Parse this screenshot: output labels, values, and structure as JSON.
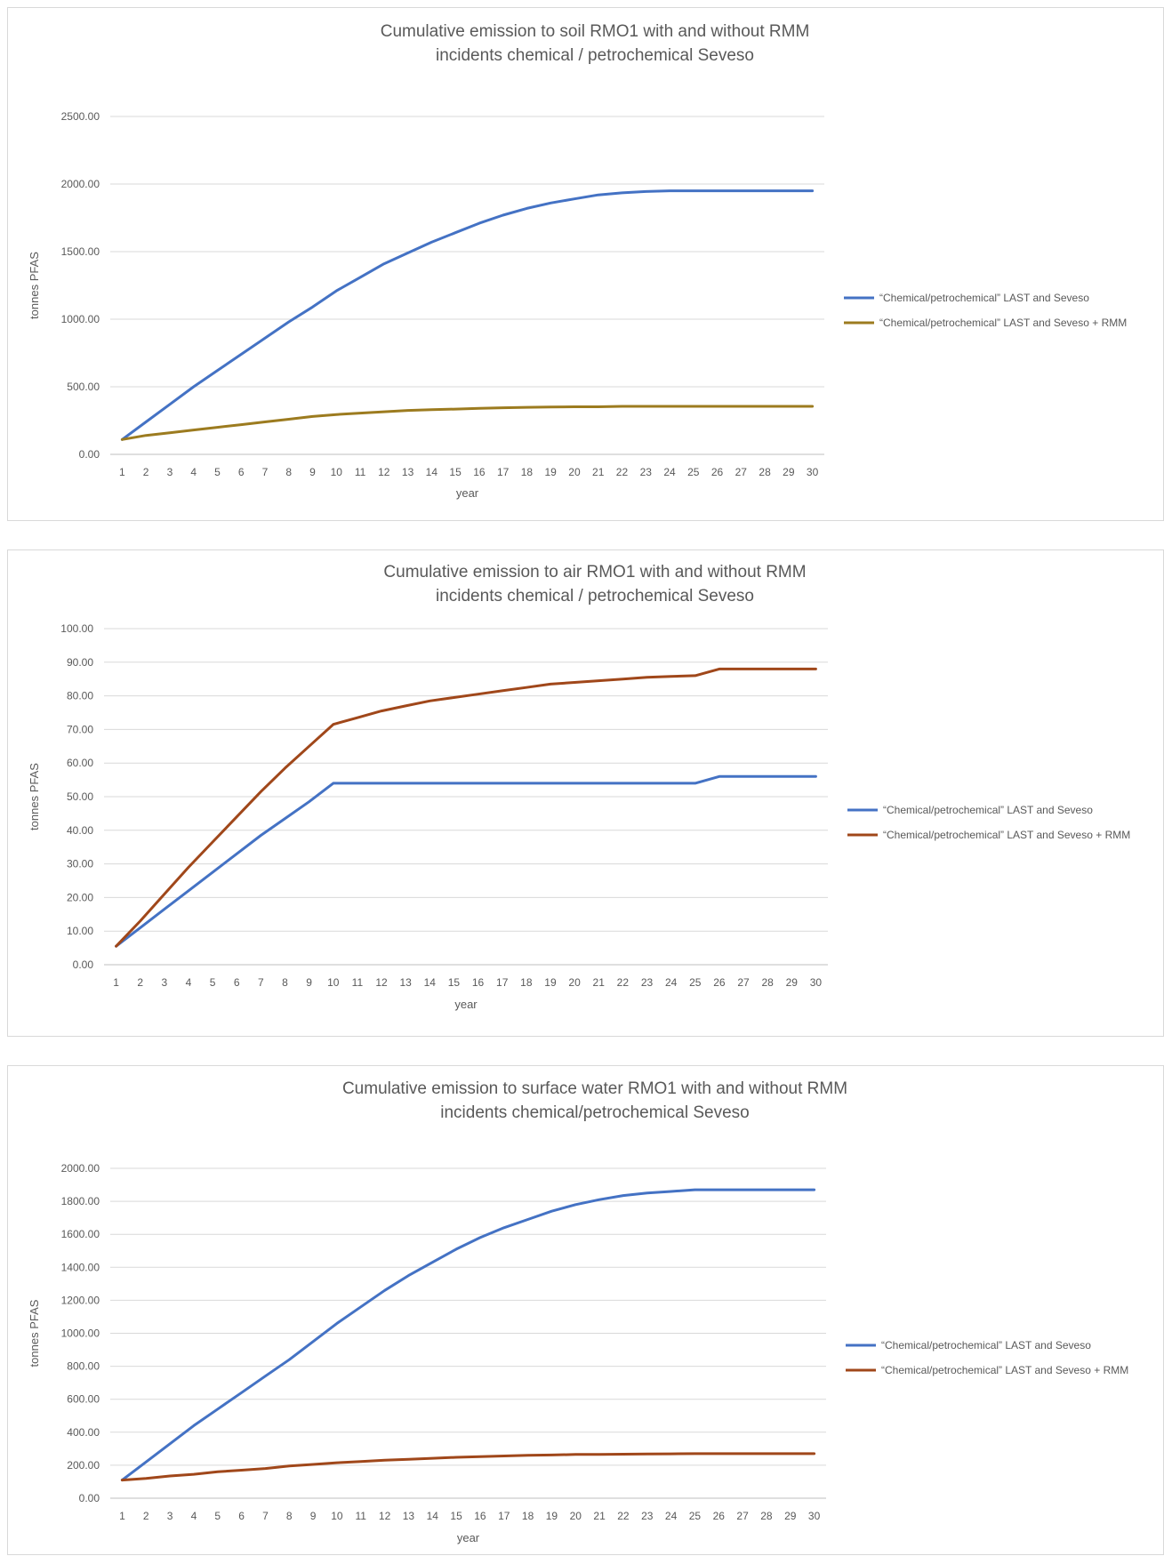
{
  "chart_data": [
    {
      "type": "line",
      "title": [
        "Cumulative emission to soil RMO1  with and without RMM",
        "incidents chemical / petrochemical Seveso"
      ],
      "xlabel": "year",
      "ylabel": "tonnes PFAS",
      "x": [
        1,
        2,
        3,
        4,
        5,
        6,
        7,
        8,
        9,
        10,
        11,
        12,
        13,
        14,
        15,
        16,
        17,
        18,
        19,
        20,
        21,
        22,
        23,
        24,
        25,
        26,
        27,
        28,
        29,
        30
      ],
      "ylim": [
        0,
        2500
      ],
      "yticks": [
        "0.00",
        "500.00",
        "1000.00",
        "1500.00",
        "2000.00",
        "2500.00"
      ],
      "grid": true,
      "legend_position": "right",
      "series": [
        {
          "name": "“Chemical/petrochemical” LAST and Seveso",
          "color": "#4472c4",
          "values": [
            110,
            240,
            370,
            500,
            620,
            740,
            860,
            980,
            1090,
            1210,
            1310,
            1410,
            1490,
            1570,
            1640,
            1710,
            1770,
            1820,
            1860,
            1890,
            1920,
            1935,
            1945,
            1950,
            1950,
            1950,
            1950,
            1950,
            1950,
            1950
          ]
        },
        {
          "name": "“Chemical/petrochemical” LAST and Seveso + RMM",
          "color": "#9c7b1f",
          "values": [
            110,
            140,
            160,
            180,
            200,
            220,
            240,
            260,
            280,
            295,
            305,
            315,
            325,
            330,
            335,
            340,
            345,
            348,
            350,
            352,
            352,
            355,
            355,
            355,
            355,
            355,
            355,
            355,
            355,
            355
          ]
        }
      ]
    },
    {
      "type": "line",
      "title": [
        "Cumulative emission to air RMO1  with and without RMM",
        "incidents chemical / petrochemical Seveso"
      ],
      "xlabel": "year",
      "ylabel": "tonnes PFAS",
      "x": [
        1,
        2,
        3,
        4,
        5,
        6,
        7,
        8,
        9,
        10,
        11,
        12,
        13,
        14,
        15,
        16,
        17,
        18,
        19,
        20,
        21,
        22,
        23,
        24,
        25,
        26,
        27,
        28,
        29,
        30
      ],
      "ylim": [
        0,
        100
      ],
      "yticks": [
        "0.00",
        "10.00",
        "20.00",
        "30.00",
        "40.00",
        "50.00",
        "60.00",
        "70.00",
        "80.00",
        "90.00",
        "100.00"
      ],
      "grid": true,
      "legend_position": "right",
      "series": [
        {
          "name": "“Chemical/petrochemical” LAST and Seveso",
          "color": "#4472c4",
          "values": [
            5.5,
            11,
            16.5,
            22,
            27.5,
            33,
            38.5,
            43.5,
            48.5,
            54,
            54,
            54,
            54,
            54,
            54,
            54,
            54,
            54,
            54,
            54,
            54,
            54,
            54,
            54,
            54,
            56,
            56,
            56,
            56,
            56
          ]
        },
        {
          "name": "“Chemical/petrochemical” LAST and Seveso + RMM",
          "color": "#a0471a",
          "values": [
            5.5,
            13,
            21,
            29,
            36.5,
            44,
            51.5,
            58.5,
            65,
            71.5,
            73.5,
            75.5,
            77,
            78.5,
            79.5,
            80.5,
            81.5,
            82.5,
            83.5,
            84,
            84.5,
            85,
            85.5,
            85.8,
            86,
            88,
            88,
            88,
            88,
            88
          ]
        }
      ]
    },
    {
      "type": "line",
      "title": [
        "Cumulative emission to surface water RMO1 with and without RMM",
        "incidents chemical/petrochemical Seveso"
      ],
      "xlabel": "year",
      "ylabel": "tonnes PFAS",
      "x": [
        1,
        2,
        3,
        4,
        5,
        6,
        7,
        8,
        9,
        10,
        11,
        12,
        13,
        14,
        15,
        16,
        17,
        18,
        19,
        20,
        21,
        22,
        23,
        24,
        25,
        26,
        27,
        28,
        29,
        30
      ],
      "ylim": [
        0,
        2000
      ],
      "yticks": [
        "0.00",
        "200.00",
        "400.00",
        "600.00",
        "800.00",
        "1000.00",
        "1200.00",
        "1400.00",
        "1600.00",
        "1800.00",
        "2000.00"
      ],
      "grid": true,
      "legend_position": "right",
      "series": [
        {
          "name": "“Chemical/petrochemical” LAST and Seveso",
          "color": "#4472c4",
          "values": [
            110,
            220,
            330,
            440,
            540,
            640,
            740,
            840,
            950,
            1060,
            1160,
            1260,
            1350,
            1430,
            1510,
            1580,
            1640,
            1690,
            1740,
            1780,
            1810,
            1835,
            1850,
            1860,
            1870,
            1870,
            1870,
            1870,
            1870,
            1870
          ]
        },
        {
          "name": "“Chemical/petrochemical” LAST and Seveso + RMM",
          "color": "#a0471a",
          "values": [
            110,
            120,
            135,
            145,
            160,
            170,
            180,
            195,
            205,
            215,
            222,
            230,
            236,
            242,
            248,
            252,
            256,
            260,
            262,
            265,
            266,
            267,
            268,
            269,
            270,
            270,
            270,
            270,
            270,
            270
          ]
        }
      ]
    }
  ]
}
